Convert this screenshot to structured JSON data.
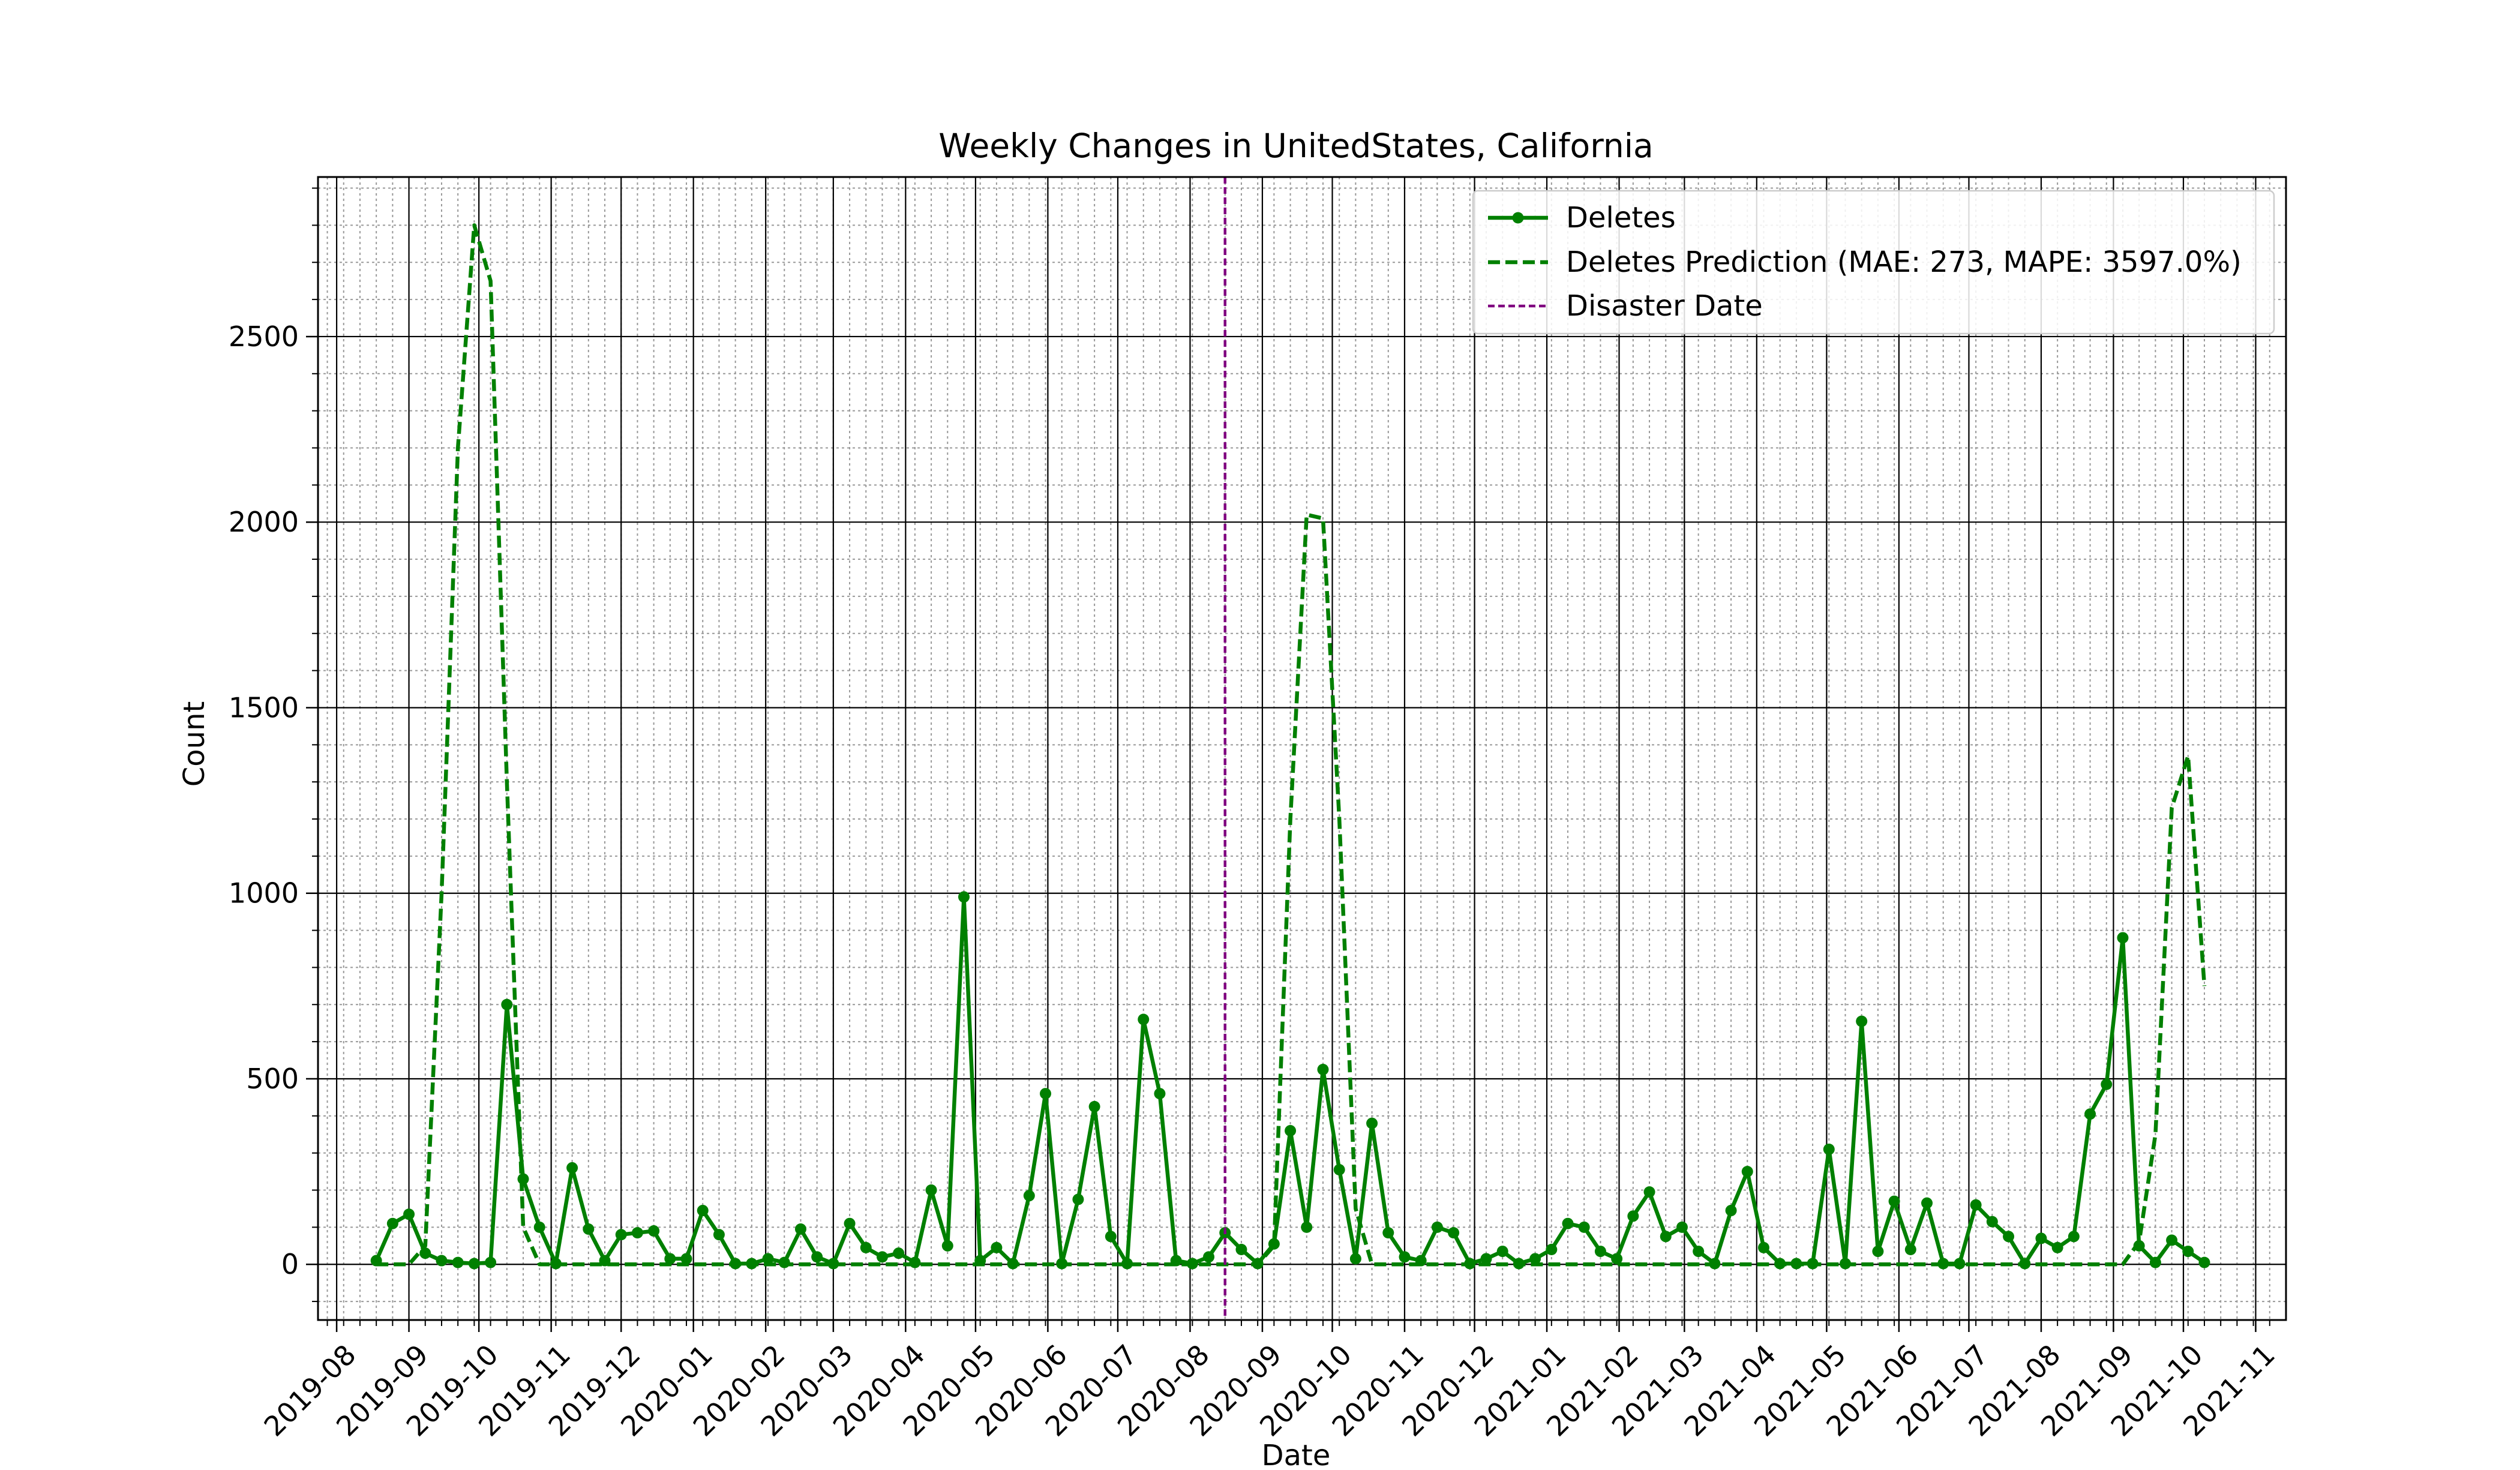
{
  "chart_data": {
    "type": "line",
    "title": "Weekly Changes in UnitedStates, California",
    "xlabel": "Date",
    "ylabel": "Count",
    "x_axis": "date",
    "xlim": [
      "2019-07-24",
      "2021-11-14"
    ],
    "ylim": [
      -150,
      2930
    ],
    "grid": {
      "major": true,
      "minor": true
    },
    "legend_placement": "top-right",
    "x_ticks": [
      "2019-08",
      "2019-09",
      "2019-10",
      "2019-11",
      "2019-12",
      "2020-01",
      "2020-02",
      "2020-03",
      "2020-04",
      "2020-05",
      "2020-06",
      "2020-07",
      "2020-08",
      "2020-09",
      "2020-10",
      "2020-11",
      "2020-12",
      "2021-01",
      "2021-02",
      "2021-03",
      "2021-04",
      "2021-05",
      "2021-06",
      "2021-07",
      "2021-08",
      "2021-09",
      "2021-10",
      "2021-11"
    ],
    "y_ticks": [
      0,
      500,
      1000,
      1500,
      2000,
      2500
    ],
    "colors": {
      "deletes": "#008000",
      "prediction": "#008000",
      "disaster": "#800080",
      "grid_major": "#000000",
      "grid_minor": "#999999"
    },
    "disaster_date": "2020-08-16",
    "series": [
      {
        "name": "Deletes",
        "style": "solid-with-markers",
        "x": [
          "2019-08-18",
          "2019-08-25",
          "2019-09-01",
          "2019-09-08",
          "2019-09-15",
          "2019-09-22",
          "2019-09-29",
          "2019-10-06",
          "2019-10-13",
          "2019-10-20",
          "2019-10-27",
          "2019-11-03",
          "2019-11-10",
          "2019-11-17",
          "2019-11-24",
          "2019-12-01",
          "2019-12-08",
          "2019-12-15",
          "2019-12-22",
          "2019-12-29",
          "2020-01-05",
          "2020-01-12",
          "2020-01-19",
          "2020-01-26",
          "2020-02-02",
          "2020-02-09",
          "2020-02-16",
          "2020-02-23",
          "2020-03-01",
          "2020-03-08",
          "2020-03-15",
          "2020-03-22",
          "2020-03-29",
          "2020-04-05",
          "2020-04-12",
          "2020-04-19",
          "2020-04-26",
          "2020-05-03",
          "2020-05-10",
          "2020-05-17",
          "2020-05-24",
          "2020-05-31",
          "2020-06-07",
          "2020-06-14",
          "2020-06-21",
          "2020-06-28",
          "2020-07-05",
          "2020-07-12",
          "2020-07-19",
          "2020-07-26",
          "2020-08-02",
          "2020-08-09",
          "2020-08-16",
          "2020-08-23",
          "2020-08-30",
          "2020-09-06",
          "2020-09-13",
          "2020-09-20",
          "2020-09-27",
          "2020-10-04",
          "2020-10-11",
          "2020-10-18",
          "2020-10-25",
          "2020-11-01",
          "2020-11-08",
          "2020-11-15",
          "2020-11-22",
          "2020-11-29",
          "2020-12-06",
          "2020-12-13",
          "2020-12-20",
          "2020-12-27",
          "2021-01-03",
          "2021-01-10",
          "2021-01-17",
          "2021-01-24",
          "2021-01-31",
          "2021-02-07",
          "2021-02-14",
          "2021-02-21",
          "2021-02-28",
          "2021-03-07",
          "2021-03-14",
          "2021-03-21",
          "2021-03-28",
          "2021-04-04",
          "2021-04-11",
          "2021-04-18",
          "2021-04-25",
          "2021-05-02",
          "2021-05-09",
          "2021-05-16",
          "2021-05-23",
          "2021-05-30",
          "2021-06-06",
          "2021-06-13",
          "2021-06-20",
          "2021-06-27",
          "2021-07-04",
          "2021-07-11",
          "2021-07-18",
          "2021-07-25",
          "2021-08-01",
          "2021-08-08",
          "2021-08-15",
          "2021-08-22",
          "2021-08-29",
          "2021-09-05",
          "2021-09-12",
          "2021-09-19",
          "2021-09-26",
          "2021-10-03",
          "2021-10-10"
        ],
        "values": [
          10,
          110,
          135,
          30,
          10,
          5,
          2,
          5,
          700,
          230,
          100,
          2,
          260,
          95,
          10,
          80,
          85,
          90,
          15,
          15,
          145,
          80,
          2,
          2,
          15,
          5,
          95,
          20,
          2,
          110,
          45,
          20,
          30,
          5,
          200,
          50,
          990,
          10,
          45,
          2,
          185,
          460,
          2,
          175,
          425,
          75,
          2,
          660,
          460,
          10,
          2,
          20,
          85,
          40,
          2,
          55,
          360,
          100,
          525,
          255,
          15,
          380,
          85,
          20,
          10,
          100,
          85,
          2,
          15,
          35,
          2,
          15,
          40,
          110,
          100,
          35,
          15,
          130,
          195,
          75,
          100,
          35,
          2,
          145,
          250,
          45,
          2,
          2,
          2,
          310,
          2,
          655,
          35,
          170,
          40,
          165,
          2,
          2,
          160,
          115,
          75,
          2,
          70,
          45,
          75,
          405,
          485,
          880,
          50,
          5,
          65,
          35,
          5
        ]
      },
      {
        "name": "Deletes Prediction (MAE: 273, MAPE: 3597.0%)",
        "style": "dashed",
        "x": [
          "2019-08-18",
          "2019-08-25",
          "2019-09-01",
          "2019-09-08",
          "2019-09-15",
          "2019-09-22",
          "2019-09-29",
          "2019-10-06",
          "2019-10-13",
          "2019-10-20",
          "2019-10-27",
          "2019-11-03",
          "2019-11-10",
          "2019-11-17",
          "2019-11-24",
          "2019-12-01",
          "2019-12-08",
          "2019-12-15",
          "2019-12-22",
          "2019-12-29",
          "2020-01-05",
          "2020-01-12",
          "2020-01-19",
          "2020-01-26",
          "2020-02-02",
          "2020-02-09",
          "2020-02-16",
          "2020-02-23",
          "2020-03-01",
          "2020-03-08",
          "2020-03-15",
          "2020-03-22",
          "2020-03-29",
          "2020-04-05",
          "2020-04-12",
          "2020-04-19",
          "2020-04-26",
          "2020-05-03",
          "2020-05-10",
          "2020-05-17",
          "2020-05-24",
          "2020-05-31",
          "2020-06-07",
          "2020-06-14",
          "2020-06-21",
          "2020-06-28",
          "2020-07-05",
          "2020-07-12",
          "2020-07-19",
          "2020-07-26",
          "2020-08-02",
          "2020-08-09",
          "2020-08-16",
          "2020-08-23",
          "2020-08-30",
          "2020-09-06",
          "2020-09-13",
          "2020-09-20",
          "2020-09-27",
          "2020-10-04",
          "2020-10-11",
          "2020-10-18",
          "2020-10-25",
          "2020-11-01",
          "2020-11-08",
          "2020-11-15",
          "2020-11-22",
          "2020-11-29",
          "2020-12-06",
          "2020-12-13",
          "2020-12-20",
          "2020-12-27",
          "2021-01-03",
          "2021-01-10",
          "2021-01-17",
          "2021-01-24",
          "2021-01-31",
          "2021-02-07",
          "2021-02-14",
          "2021-02-21",
          "2021-02-28",
          "2021-03-07",
          "2021-03-14",
          "2021-03-21",
          "2021-03-28",
          "2021-04-04",
          "2021-04-11",
          "2021-04-18",
          "2021-04-25",
          "2021-05-02",
          "2021-05-09",
          "2021-05-16",
          "2021-05-23",
          "2021-05-30",
          "2021-06-06",
          "2021-06-13",
          "2021-06-20",
          "2021-06-27",
          "2021-07-04",
          "2021-07-11",
          "2021-07-18",
          "2021-07-25",
          "2021-08-01",
          "2021-08-08",
          "2021-08-15",
          "2021-08-22",
          "2021-08-29",
          "2021-09-05",
          "2021-09-12",
          "2021-09-19",
          "2021-09-26",
          "2021-10-03",
          "2021-10-10"
        ],
        "values": [
          0,
          0,
          0,
          50,
          1000,
          2200,
          2800,
          2650,
          1300,
          100,
          0,
          0,
          0,
          0,
          0,
          0,
          0,
          0,
          0,
          0,
          0,
          0,
          0,
          0,
          0,
          0,
          0,
          0,
          0,
          0,
          0,
          0,
          0,
          0,
          0,
          0,
          0,
          0,
          0,
          0,
          0,
          0,
          0,
          0,
          0,
          0,
          0,
          0,
          0,
          0,
          0,
          0,
          0,
          0,
          0,
          50,
          1200,
          2020,
          2010,
          1200,
          150,
          0,
          0,
          0,
          0,
          0,
          0,
          0,
          0,
          0,
          0,
          0,
          0,
          0,
          0,
          0,
          0,
          0,
          0,
          0,
          0,
          0,
          0,
          0,
          0,
          0,
          0,
          0,
          0,
          0,
          0,
          0,
          0,
          0,
          0,
          0,
          0,
          0,
          0,
          0,
          0,
          0,
          0,
          0,
          0,
          0,
          0,
          0,
          60,
          350,
          1230,
          1370,
          750
        ]
      },
      {
        "name": "Disaster Date",
        "style": "vline-dashed"
      }
    ]
  }
}
